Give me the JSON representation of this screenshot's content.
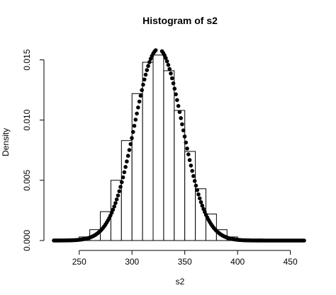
{
  "chart_data": {
    "type": "bar",
    "title": "Histogram of s2",
    "xlabel": "s2",
    "ylabel": "Density",
    "xlim": [
      226,
      463
    ],
    "ylim": [
      0,
      0.0158
    ],
    "xticks": [
      250,
      300,
      350,
      400,
      450
    ],
    "yticks": [
      0.0,
      0.005,
      0.01,
      0.015
    ],
    "ytick_labels": [
      "0.000",
      "0.005",
      "0.010",
      "0.015"
    ],
    "grid": false,
    "bin_width": 10,
    "bins": [
      {
        "start": 250,
        "end": 260,
        "density": 0.0003
      },
      {
        "start": 260,
        "end": 270,
        "density": 0.0009
      },
      {
        "start": 270,
        "end": 280,
        "density": 0.0024
      },
      {
        "start": 280,
        "end": 290,
        "density": 0.005
      },
      {
        "start": 290,
        "end": 300,
        "density": 0.0083
      },
      {
        "start": 300,
        "end": 310,
        "density": 0.0122
      },
      {
        "start": 310,
        "end": 320,
        "density": 0.0148
      },
      {
        "start": 320,
        "end": 330,
        "density": 0.0154
      },
      {
        "start": 330,
        "end": 340,
        "density": 0.0141
      },
      {
        "start": 340,
        "end": 350,
        "density": 0.0108
      },
      {
        "start": 350,
        "end": 360,
        "density": 0.0074
      },
      {
        "start": 360,
        "end": 370,
        "density": 0.0043
      },
      {
        "start": 370,
        "end": 380,
        "density": 0.0022
      },
      {
        "start": 380,
        "end": 390,
        "density": 0.0009
      },
      {
        "start": 390,
        "end": 400,
        "density": 0.0003
      },
      {
        "start": 400,
        "end": 410,
        "density": 0.0001
      }
    ],
    "overlay_points": {
      "style": "filled-circle",
      "x_range": [
        226,
        463
      ],
      "peak_x": 325,
      "peak_density": 0.0159,
      "sd": 22.5
    }
  }
}
